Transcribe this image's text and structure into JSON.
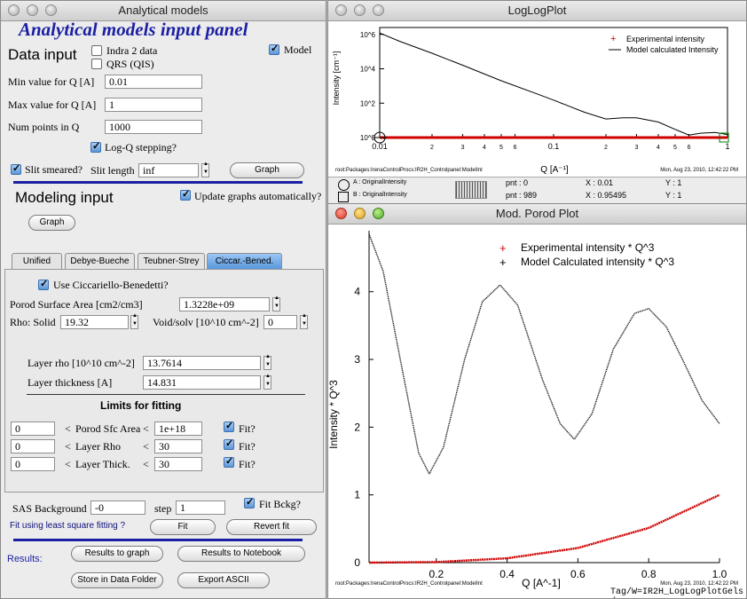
{
  "panel": {
    "window_title": "Analytical models",
    "heading": "Analytical models input panel",
    "data_input": {
      "title": "Data input",
      "indra2_label": "Indra 2 data",
      "qrs_label": "QRS (QIS)",
      "model_label": "Model",
      "min_q_label": "Min value for Q [A]",
      "min_q_value": "0.01",
      "max_q_label": "Max value for Q [A]",
      "max_q_value": "1",
      "num_points_label": "Num points in Q",
      "num_points_value": "1000",
      "log_q_label": "Log-Q stepping?",
      "slit_label": "Slit smeared?",
      "slit_length_label": "Slit length",
      "slit_length_value": "inf",
      "graph_button": "Graph"
    },
    "modeling": {
      "title": "Modeling input",
      "update_label": "Update graphs automatically?",
      "graph_button": "Graph"
    },
    "tabs": [
      "Unified",
      "Debye-Bueche",
      "Teubner-Strey",
      "Ciccar.-Bened."
    ],
    "cb_tab": {
      "use_label": "Use Ciccariello-Benedetti?",
      "porod_label": "Porod Surface Area [cm2/cm3]",
      "porod_value": "1.3228e+09",
      "rho_label": "Rho:  Solid",
      "rho_value": "19.32",
      "void_label": "Void/solv [10^10 cm^-2]",
      "void_value": "0",
      "layer_rho_label": "Layer rho [10^10 cm^-2]",
      "layer_rho_value": "13.7614",
      "layer_thick_label": "Layer thickness [A]",
      "layer_thick_value": "14.831",
      "limits_title": "Limits for fitting",
      "limits": [
        {
          "low": "0",
          "name": "Porod Sfc Area",
          "high": "1e+18",
          "fit": "Fit?"
        },
        {
          "low": "0",
          "name": "Layer Rho",
          "high": "30",
          "fit": "Fit?"
        },
        {
          "low": "0",
          "name": "Layer Thick.",
          "high": "30",
          "fit": "Fit?"
        }
      ]
    },
    "bottom": {
      "sas_bg_label": "SAS Background",
      "sas_bg_value": "-0",
      "step_label": "step",
      "step_value": "1",
      "fit_bckg_label": "Fit Bckg?",
      "fit_prompt": "Fit using least square fitting ?",
      "fit_button": "Fit",
      "revert_button": "Revert fit",
      "results_label": "Results:",
      "results_graph_button": "Results to graph",
      "results_notebook_button": "Results to Notebook",
      "store_button": "Store in Data Folder",
      "export_button": "Export ASCII"
    }
  },
  "loglog": {
    "window_title": "LogLogPlot",
    "legend": [
      "Experimental intensity",
      "Model calculated Intensity"
    ],
    "ylabel": "Intensity [cm⁻¹]",
    "xlabel": "Q [A⁻¹]",
    "path_text": "root:Packages:IrenaControlProcs:IR2H_Controlpanel:ModelInt",
    "date_text": "Mon, Aug 23, 2010, 12:42:22 PM",
    "cursor_a": "A : OriginalIntensity",
    "cursor_b": "B : OriginalIntensity",
    "pnt_a": "pnt : 0",
    "pnt_b": "pnt : 989",
    "x_a": "X : 0.01",
    "x_b": "X : 0.95495",
    "y_a": "Y : 1",
    "y_b": "Y : 1"
  },
  "porod": {
    "window_title": "Mod. Porod Plot",
    "path_text": "root:Packages:IrenaControlProcs:IR2H_Controlpanel:ModelInt",
    "date_text": "Mon, Aug 23, 2010, 12:42:22 PM",
    "status_text": "Tag/W=IR2H_LogLogPlotGels /"
  },
  "chart_data": [
    {
      "type": "line",
      "title": "LogLogPlot",
      "xlabel": "Q [A^-1]",
      "ylabel": "Intensity [cm^-1]",
      "xscale": "log",
      "yscale": "log",
      "xlim": [
        0.01,
        1
      ],
      "ylim": [
        1,
        1000000
      ],
      "legend_position": "top-right",
      "x_ticks": [
        "0.01",
        "2",
        "3",
        "4",
        "5",
        "6",
        "0.1",
        "2",
        "3",
        "4",
        "5",
        "6",
        "1"
      ],
      "y_ticks": [
        "10^0",
        "10^2",
        "10^4",
        "10^6"
      ],
      "series": [
        {
          "name": "Experimental intensity",
          "color": "#d00000",
          "x": [
            0.01,
            0.02,
            0.05,
            0.1,
            0.2,
            0.5,
            1.0
          ],
          "y": [
            1,
            1,
            1,
            1,
            1,
            1,
            1
          ]
        },
        {
          "name": "Model calculated Intensity",
          "color": "#000000",
          "x": [
            0.01,
            0.013,
            0.02,
            0.03,
            0.05,
            0.08,
            0.1,
            0.15,
            0.2,
            0.25,
            0.3,
            0.4,
            0.5,
            0.6,
            0.7,
            0.85,
            1.0
          ],
          "y": [
            1200000,
            400000,
            80000,
            16000,
            2000,
            350,
            150,
            30,
            12,
            14,
            14,
            8,
            3,
            1.4,
            1.8,
            2,
            1.5
          ]
        }
      ]
    },
    {
      "type": "scatter",
      "title": "Mod. Porod Plot",
      "xlabel": "Q [A^-1]",
      "ylabel": "Intensity * Q^3",
      "xlim": [
        0.01,
        1.0
      ],
      "ylim": [
        0,
        4.9
      ],
      "x_ticks": [
        "0.2",
        "0.4",
        "0.6",
        "0.8",
        "1.0"
      ],
      "y_ticks": [
        "0",
        "1",
        "2",
        "3",
        "4"
      ],
      "legend_position": "top-right",
      "series": [
        {
          "name": "Experimental intensity * Q^3",
          "color": "#d00000",
          "x": [
            0.01,
            0.2,
            0.4,
            0.6,
            0.8,
            1.0
          ],
          "y": [
            0.0,
            0.008,
            0.064,
            0.216,
            0.512,
            1.0
          ]
        },
        {
          "name": "Model Calculated intensity * Q^3",
          "color": "#000000",
          "x": [
            0.01,
            0.05,
            0.1,
            0.15,
            0.18,
            0.22,
            0.28,
            0.33,
            0.38,
            0.43,
            0.5,
            0.55,
            0.59,
            0.64,
            0.7,
            0.76,
            0.8,
            0.85,
            0.9,
            0.95,
            1.0
          ],
          "y": [
            4.85,
            4.3,
            2.95,
            1.62,
            1.31,
            1.7,
            3.0,
            3.85,
            4.1,
            3.8,
            2.7,
            2.05,
            1.82,
            2.2,
            3.15,
            3.68,
            3.75,
            3.48,
            2.95,
            2.4,
            2.05
          ]
        }
      ]
    }
  ]
}
